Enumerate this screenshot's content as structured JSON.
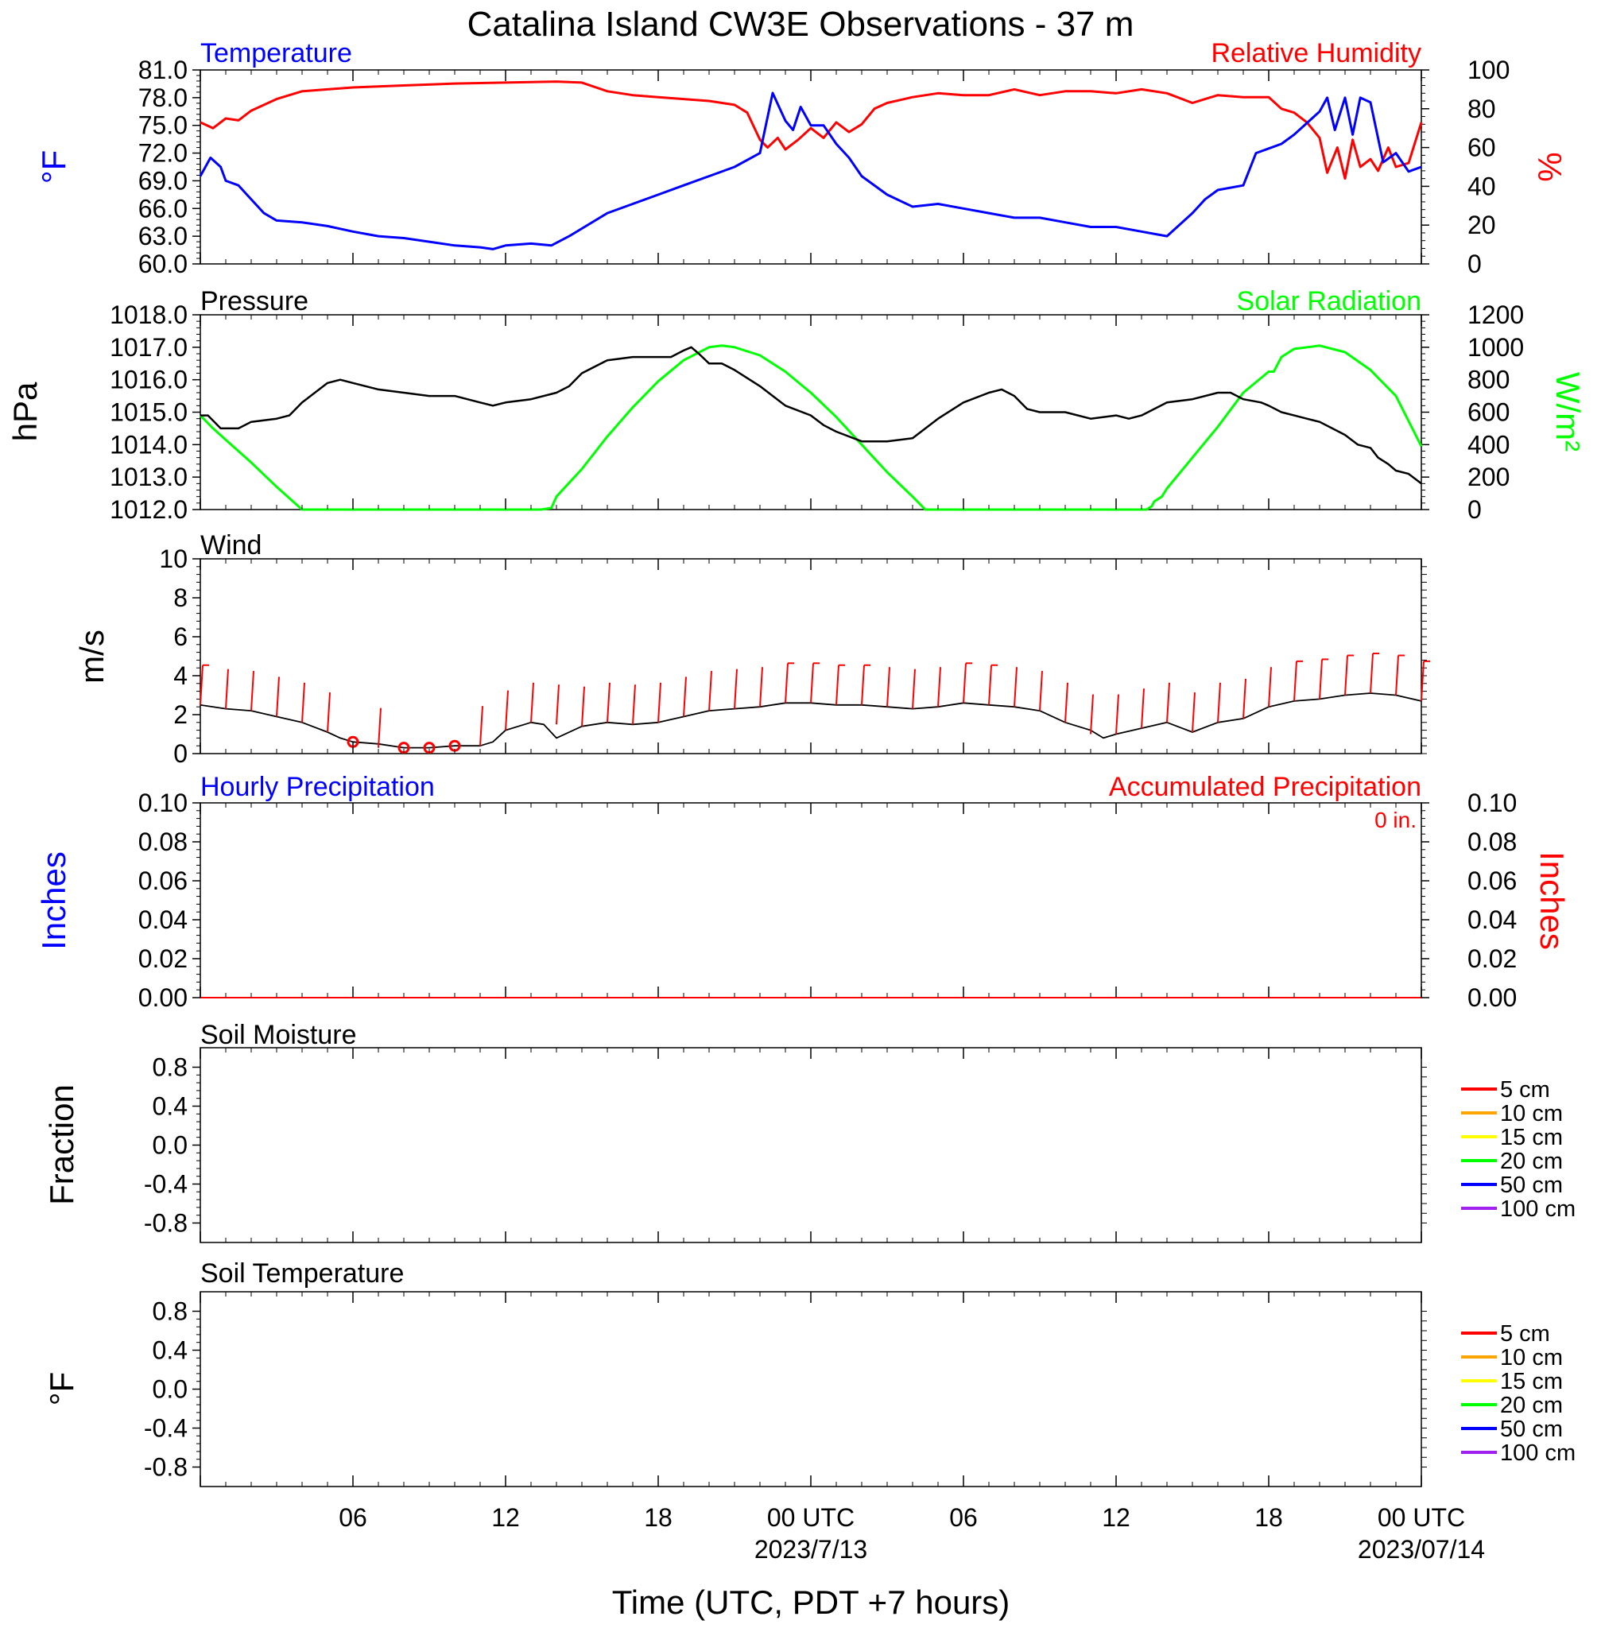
{
  "title": "Catalina Island CW3E Observations - 37 m",
  "x_axis": {
    "label": "Time (UTC, PDT +7 hours)",
    "range_hours": [
      0,
      48
    ],
    "ticks": [
      {
        "h": 6,
        "label": "06"
      },
      {
        "h": 12,
        "label": "12"
      },
      {
        "h": 18,
        "label": "18"
      },
      {
        "h": 24,
        "label": "00 UTC",
        "date": "2023/7/13"
      },
      {
        "h": 30,
        "label": "06"
      },
      {
        "h": 36,
        "label": "12"
      },
      {
        "h": 42,
        "label": "18"
      },
      {
        "h": 48,
        "label": "00 UTC",
        "date": "2023/07/14"
      }
    ]
  },
  "colors": {
    "temperature": "#0000ff",
    "humidity": "#ff0000",
    "pressure": "#000000",
    "solar": "#00ff00",
    "wind": "#000000",
    "wind_barb": "#ff0000",
    "precip_hourly": "#0000ff",
    "precip_accum": "#ff0000"
  },
  "panels": {
    "temp_rh": {
      "left_title": "Temperature",
      "right_title": "Relative Humidity",
      "left_unit": "°F",
      "right_unit": "%",
      "left_ticks": [
        "60.0",
        "63.0",
        "66.0",
        "69.0",
        "72.0",
        "75.0",
        "78.0",
        "81.0"
      ],
      "right_ticks": [
        "0",
        "20",
        "40",
        "60",
        "80",
        "100"
      ]
    },
    "pressure_solar": {
      "left_title": "Pressure",
      "right_title": "Solar Radiation",
      "left_unit": "hPa",
      "right_unit": "W/m²",
      "left_ticks": [
        "1012.0",
        "1013.0",
        "1014.0",
        "1015.0",
        "1016.0",
        "1017.0",
        "1018.0"
      ],
      "right_ticks": [
        "0",
        "200",
        "400",
        "600",
        "800",
        "1000",
        "1200"
      ]
    },
    "wind": {
      "left_title": "Wind",
      "left_unit": "m/s",
      "left_ticks": [
        "0",
        "2",
        "4",
        "6",
        "8",
        "10"
      ]
    },
    "precip": {
      "left_title": "Hourly Precipitation",
      "right_title": "Accumulated Precipitation",
      "left_unit": "Inches",
      "right_unit": "Inches",
      "accum_value": "0 in.",
      "left_ticks": [
        "0.00",
        "0.02",
        "0.04",
        "0.06",
        "0.08",
        "0.10"
      ],
      "right_ticks": [
        "0.00",
        "0.02",
        "0.04",
        "0.06",
        "0.08",
        "0.10"
      ]
    },
    "soil_moisture": {
      "left_title": "Soil Moisture",
      "left_unit": "Fraction",
      "left_ticks": [
        "-0.8",
        "-0.4",
        "0.0",
        "0.4",
        "0.8"
      ]
    },
    "soil_temperature": {
      "left_title": "Soil Temperature",
      "left_unit": "°F",
      "left_ticks": [
        "-0.8",
        "-0.4",
        "0.0",
        "0.4",
        "0.8"
      ]
    }
  },
  "soil_legend": [
    {
      "label": "5 cm",
      "color": "#ff0000"
    },
    {
      "label": "10 cm",
      "color": "#ffa500"
    },
    {
      "label": "15 cm",
      "color": "#ffff00"
    },
    {
      "label": "20 cm",
      "color": "#00ff00"
    },
    {
      "label": "50 cm",
      "color": "#0000ff"
    },
    {
      "label": "100 cm",
      "color": "#a020f0"
    }
  ],
  "chart_data": [
    {
      "type": "line",
      "title": "Temperature / Relative Humidity",
      "x_unit": "hours since 2023-07-12 00 UTC",
      "series": [
        {
          "name": "Temperature",
          "axis": "left",
          "unit": "°F",
          "ylim": [
            60,
            81
          ],
          "x": [
            0,
            0.4,
            0.8,
            1,
            1.5,
            2,
            2.5,
            3,
            4,
            5,
            6,
            7,
            8,
            9,
            10,
            11,
            11.5,
            12,
            13,
            13.8,
            14.5,
            16,
            17,
            18,
            19,
            20,
            21,
            22,
            22.5,
            23,
            23.3,
            23.6,
            24,
            24.5,
            25,
            25.5,
            26,
            27,
            28,
            29,
            30,
            31,
            32,
            33,
            34,
            35,
            36,
            37,
            38,
            39,
            39.5,
            40,
            41,
            41.5,
            42,
            42.5,
            43,
            44,
            44.3,
            44.6,
            45,
            45.3,
            45.6,
            46,
            46.5,
            47,
            47.5,
            48
          ],
          "y": [
            69.5,
            71.5,
            70.5,
            69,
            68.5,
            67,
            65.5,
            64.7,
            64.5,
            64.1,
            63.5,
            63,
            62.8,
            62.4,
            62,
            61.8,
            61.6,
            62,
            62.2,
            62,
            63,
            65.5,
            66.5,
            67.5,
            68.5,
            69.5,
            70.5,
            72,
            78.5,
            75.5,
            74.5,
            77,
            75,
            75,
            73,
            71.5,
            69.5,
            67.5,
            66.2,
            66.5,
            66,
            65.5,
            65,
            65,
            64.5,
            64,
            64,
            63.5,
            63,
            65.5,
            67,
            68,
            68.5,
            72,
            72.5,
            73,
            74,
            76.5,
            78,
            74.5,
            78,
            74,
            78,
            77.5,
            71,
            72,
            70,
            70.5
          ]
        },
        {
          "name": "Relative Humidity",
          "axis": "right",
          "unit": "%",
          "ylim": [
            0,
            100
          ],
          "x": [
            0,
            0.5,
            1,
            1.5,
            2,
            3,
            4,
            5,
            6,
            8,
            10,
            12,
            14,
            15,
            16,
            17,
            18,
            19,
            20,
            21,
            21.5,
            22,
            22.3,
            22.7,
            23,
            23.5,
            24,
            24.5,
            25,
            25.5,
            26,
            26.5,
            27,
            28,
            29,
            30,
            31,
            32,
            33,
            34,
            35,
            36,
            37,
            38,
            39,
            40,
            41,
            42,
            42.5,
            43,
            43.5,
            44,
            44.3,
            44.7,
            45,
            45.3,
            45.6,
            46,
            46.3,
            46.7,
            47,
            47.5,
            48
          ],
          "y": [
            73,
            70,
            75,
            74,
            79,
            85,
            89,
            90,
            91,
            92,
            93,
            93.5,
            94,
            93.5,
            89,
            87,
            86,
            85,
            84,
            82,
            78,
            64,
            60,
            65,
            59,
            64,
            70,
            65,
            73,
            68,
            72,
            80,
            83,
            86,
            88,
            87,
            87,
            90,
            87,
            89,
            89,
            88,
            90,
            88,
            83,
            87,
            86,
            86,
            80,
            78,
            73,
            65,
            47,
            60,
            44,
            64,
            50,
            54,
            48,
            60,
            50,
            52,
            73
          ]
        }
      ]
    },
    {
      "type": "line",
      "title": "Pressure / Solar Radiation",
      "x_unit": "hours since 2023-07-12 00 UTC",
      "series": [
        {
          "name": "Pressure",
          "axis": "left",
          "unit": "hPa",
          "ylim": [
            1012,
            1018
          ],
          "x": [
            0,
            0.3,
            0.8,
            1.5,
            2,
            3,
            3.5,
            4,
            5,
            5.5,
            6,
            7,
            8,
            9,
            10,
            11,
            11.5,
            12,
            13,
            14,
            14.5,
            15,
            16,
            17,
            18,
            18.5,
            19,
            19.3,
            19.6,
            20,
            20.5,
            21,
            22,
            23,
            24,
            24.5,
            25,
            26,
            26.5,
            27,
            28,
            29,
            30,
            31,
            31.5,
            32,
            32.5,
            33,
            34,
            35,
            36,
            36.5,
            37,
            38,
            39,
            40,
            40.5,
            41,
            41.7,
            42,
            42.5,
            43,
            43.5,
            44,
            44.5,
            45,
            45.5,
            46,
            46.3,
            46.7,
            47,
            47.5,
            48
          ],
          "y": [
            1014.9,
            1014.9,
            1014.5,
            1014.5,
            1014.7,
            1014.8,
            1014.9,
            1015.3,
            1015.9,
            1016.0,
            1015.9,
            1015.7,
            1015.6,
            1015.5,
            1015.5,
            1015.3,
            1015.2,
            1015.3,
            1015.4,
            1015.6,
            1015.8,
            1016.2,
            1016.6,
            1016.7,
            1016.7,
            1016.7,
            1016.9,
            1017.0,
            1016.8,
            1016.5,
            1016.5,
            1016.3,
            1015.8,
            1015.2,
            1014.9,
            1014.6,
            1014.4,
            1014.1,
            1014.1,
            1014.1,
            1014.2,
            1014.8,
            1015.3,
            1015.6,
            1015.7,
            1015.5,
            1015.1,
            1015.0,
            1015.0,
            1014.8,
            1014.9,
            1014.8,
            1014.9,
            1015.3,
            1015.4,
            1015.6,
            1015.6,
            1015.4,
            1015.3,
            1015.2,
            1015.0,
            1014.9,
            1014.8,
            1014.7,
            1014.5,
            1014.3,
            1014.0,
            1013.9,
            1013.6,
            1013.4,
            1013.2,
            1013.1,
            1012.8
          ]
        },
        {
          "name": "Solar Radiation",
          "axis": "right",
          "unit": "W/m²",
          "ylim": [
            0,
            1200
          ],
          "x": [
            0,
            0.5,
            1,
            2,
            3,
            4,
            5,
            13,
            13.4,
            13.8,
            14,
            15,
            16,
            17,
            18,
            19,
            20,
            20.5,
            21,
            22,
            23,
            24,
            25,
            26,
            27,
            28,
            28.5,
            29,
            30,
            33,
            36,
            37.2,
            37.4,
            37.5,
            37.8,
            38,
            39,
            40,
            41,
            42,
            42.2,
            42.5,
            43,
            44,
            45,
            46,
            47,
            48
          ],
          "y": [
            580,
            500,
            430,
            290,
            140,
            0,
            0,
            0,
            0,
            10,
            80,
            250,
            450,
            630,
            790,
            920,
            1000,
            1010,
            1000,
            950,
            850,
            720,
            570,
            400,
            230,
            80,
            0,
            0,
            0,
            0,
            0,
            0,
            20,
            50,
            80,
            130,
            320,
            510,
            720,
            850,
            850,
            940,
            990,
            1010,
            970,
            860,
            700,
            390
          ]
        }
      ]
    },
    {
      "type": "line",
      "title": "Wind",
      "x_unit": "hours since 2023-07-12 00 UTC",
      "series": [
        {
          "name": "Wind",
          "unit": "m/s",
          "ylim": [
            0,
            10
          ],
          "x": [
            0,
            1,
            2,
            3,
            4,
            5,
            5.5,
            6,
            7,
            8,
            9,
            10,
            11,
            11.5,
            12,
            13,
            13.5,
            14,
            15,
            16,
            17,
            18,
            19,
            20,
            21,
            22,
            23,
            24,
            25,
            26,
            27,
            28,
            29,
            30,
            31,
            32,
            33,
            34,
            35,
            35.5,
            36,
            37,
            38,
            39,
            40,
            41,
            42,
            43,
            44,
            45,
            46,
            47,
            48
          ],
          "y": [
            2.5,
            2.3,
            2.2,
            1.9,
            1.6,
            1.1,
            0.8,
            0.6,
            0.5,
            0.3,
            0.3,
            0.4,
            0.4,
            0.6,
            1.2,
            1.6,
            1.5,
            0.8,
            1.4,
            1.6,
            1.5,
            1.6,
            1.9,
            2.2,
            2.3,
            2.4,
            2.6,
            2.6,
            2.5,
            2.5,
            2.4,
            2.3,
            2.4,
            2.6,
            2.5,
            2.4,
            2.2,
            1.6,
            1.2,
            0.8,
            1.0,
            1.3,
            1.6,
            1.1,
            1.6,
            1.8,
            2.4,
            2.7,
            2.8,
            3.0,
            3.1,
            3.0,
            2.7
          ]
        },
        {
          "name": "Wind barbs",
          "unit": "m/s",
          "markers": "barb / calm circle",
          "x": [
            0,
            1,
            2,
            3,
            4,
            5,
            6,
            7,
            8,
            9,
            10,
            11,
            12,
            13,
            14,
            15,
            16,
            17,
            18,
            19,
            20,
            21,
            22,
            23,
            24,
            25,
            26,
            27,
            28,
            29,
            30,
            31,
            32,
            33,
            34,
            35,
            36,
            37,
            38,
            39,
            40,
            41,
            42,
            43,
            44,
            45,
            46,
            47,
            48
          ],
          "y": [
            2.5,
            2.3,
            2.2,
            1.9,
            1.6,
            1.1,
            0.6,
            0.3,
            0.3,
            0.3,
            0.4,
            0.4,
            1.2,
            1.6,
            1.5,
            1.4,
            1.6,
            1.5,
            1.6,
            1.9,
            2.2,
            2.3,
            2.4,
            2.6,
            2.6,
            2.5,
            2.5,
            2.4,
            2.3,
            2.4,
            2.6,
            2.5,
            2.4,
            2.2,
            1.6,
            1.0,
            1.0,
            1.3,
            1.6,
            1.1,
            1.6,
            1.8,
            2.4,
            2.7,
            2.8,
            3.0,
            3.1,
            3.0,
            2.7
          ],
          "calm": [
            6,
            8,
            9,
            10
          ]
        }
      ]
    },
    {
      "type": "line",
      "title": "Precipitation",
      "x_unit": "hours since 2023-07-12 00 UTC",
      "series": [
        {
          "name": "Hourly Precipitation",
          "axis": "left",
          "unit": "in",
          "ylim": [
            0,
            0.1
          ],
          "x": [
            0,
            48
          ],
          "y": [
            0,
            0
          ]
        },
        {
          "name": "Accumulated Precipitation",
          "axis": "right",
          "unit": "in",
          "ylim": [
            0,
            0.1
          ],
          "x": [
            0,
            48
          ],
          "y": [
            0,
            0
          ]
        }
      ]
    },
    {
      "type": "line",
      "title": "Soil Moisture",
      "ylim": [
        -1,
        1
      ],
      "series": []
    },
    {
      "type": "line",
      "title": "Soil Temperature",
      "ylim": [
        -1,
        1
      ],
      "series": []
    }
  ]
}
